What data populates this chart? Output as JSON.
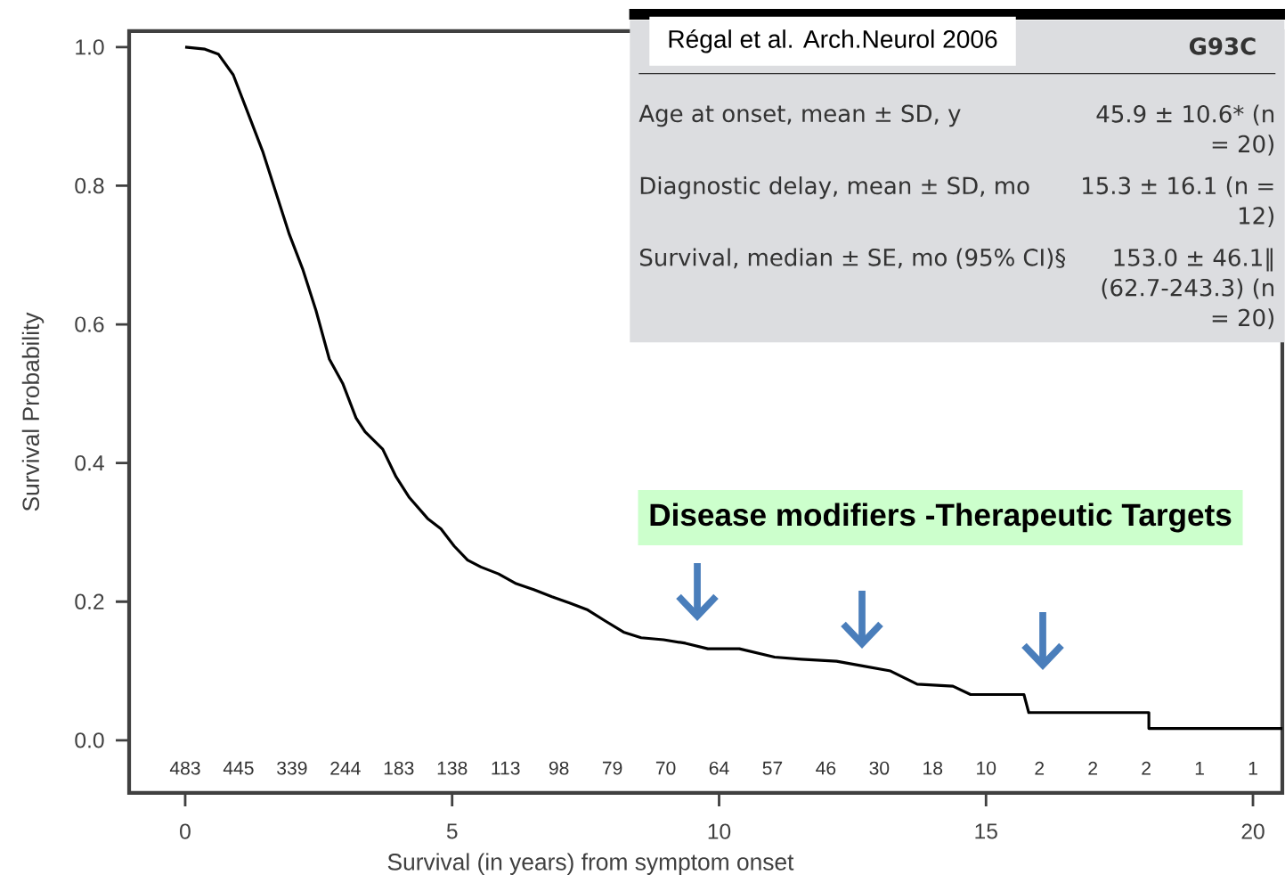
{
  "chart_data": {
    "type": "line",
    "xlabel": "Survival (in years) from symptom onset",
    "ylabel": "Survival Probability",
    "xlim": [
      -1.05,
      20.55
    ],
    "ylim": [
      -0.076,
      1.023
    ],
    "xticks": [
      0,
      5,
      10,
      15,
      20
    ],
    "yticks": [
      {
        "value": 0,
        "label": "0.0"
      },
      {
        "value": 0.2,
        "label": "0.2"
      },
      {
        "value": 0.4,
        "label": "0.4"
      },
      {
        "value": 0.6,
        "label": "0.6"
      },
      {
        "value": 0.8,
        "label": "0.8"
      },
      {
        "value": 1,
        "label": "1.0"
      }
    ],
    "series": [
      {
        "color": "#000000",
        "x": [
          0,
          0.37,
          0.62,
          0.9,
          1.2,
          1.45,
          1.7,
          1.95,
          2.2,
          2.45,
          2.7,
          2.95,
          3.2,
          3.37,
          3.7,
          3.95,
          4.2,
          4.54,
          4.79,
          5.04,
          5.29,
          5.54,
          5.87,
          6.2,
          6.54,
          6.87,
          7.2,
          7.54,
          7.87,
          8.21,
          8.54,
          8.96,
          9.37,
          9.79,
          10.38,
          11.04,
          11.54,
          12.2,
          12.71,
          13.21,
          13.71,
          14.38,
          14.71,
          15.71,
          15.8,
          18.05,
          18.05,
          20.55
        ],
        "values": [
          1.0,
          0.997,
          0.99,
          0.96,
          0.9,
          0.85,
          0.79,
          0.73,
          0.68,
          0.62,
          0.55,
          0.515,
          0.465,
          0.445,
          0.42,
          0.38,
          0.35,
          0.32,
          0.305,
          0.28,
          0.26,
          0.25,
          0.24,
          0.226,
          0.217,
          0.207,
          0.198,
          0.188,
          0.172,
          0.156,
          0.148,
          0.145,
          0.14,
          0.132,
          0.132,
          0.12,
          0.117,
          0.114,
          0.107,
          0.1,
          0.081,
          0.078,
          0.066,
          0.066,
          0.04,
          0.04,
          0.017,
          0.017
        ]
      }
    ],
    "annotations": [
      "Régal et al. Arch.Neurol 2006",
      "G93C",
      "Age at onset, mean ± SD, y",
      "45.9 ± 10.6* (n = 20)",
      "Diagnostic delay, mean ± SD, mo",
      "15.3 ± 16.1 (n = 12)",
      "Survival, median ± SE, mo (95% CI)§",
      "153.0 ± 46.1‖ (62.7-243.3) (n = 20)",
      "Disease modifiers -Therapeutic Targets",
      "483",
      "445",
      "339",
      "244",
      "183",
      "138",
      "113",
      "98",
      "79",
      "70",
      "64",
      "57",
      "46",
      "30",
      "18",
      "10",
      "2",
      "2",
      "2",
      "1",
      "1"
    ]
  }
}
